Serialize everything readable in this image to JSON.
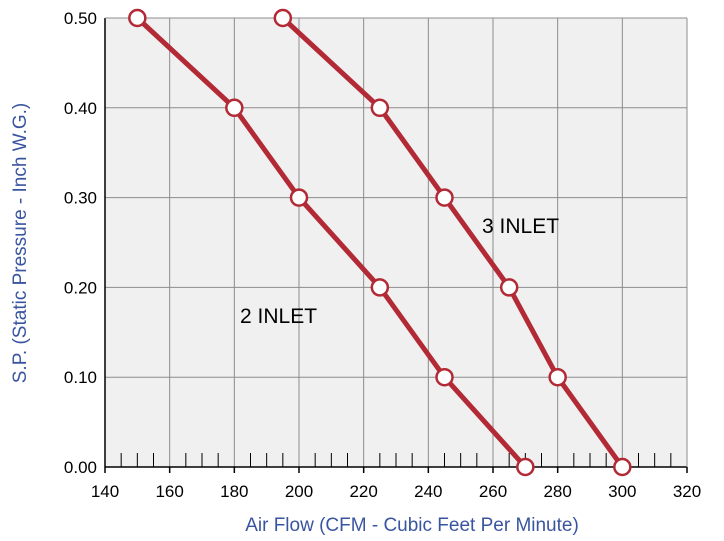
{
  "chart_data": {
    "type": "line",
    "xlabel": "Air Flow (CFM - Cubic Feet Per Minute)",
    "ylabel": "S.P. (Static Pressure - Inch W.G.)",
    "xlim": [
      140,
      320
    ],
    "ylim": [
      0.0,
      0.5
    ],
    "x_ticks": [
      "140",
      "160",
      "180",
      "200",
      "220",
      "240",
      "260",
      "280",
      "300",
      "320"
    ],
    "y_ticks": [
      "0.00",
      "0.10",
      "0.20",
      "0.30",
      "0.40",
      "0.50"
    ],
    "grid": true,
    "series": [
      {
        "name": "2 INLET",
        "points": [
          [
            150,
            0.5
          ],
          [
            180,
            0.4
          ],
          [
            200,
            0.3
          ],
          [
            225,
            0.2
          ],
          [
            245,
            0.1
          ],
          [
            270,
            0.0
          ]
        ]
      },
      {
        "name": "3 INLET",
        "points": [
          [
            195,
            0.5
          ],
          [
            225,
            0.4
          ],
          [
            245,
            0.3
          ],
          [
            265,
            0.2
          ],
          [
            280,
            0.1
          ],
          [
            300,
            0.0
          ]
        ]
      }
    ],
    "colors": {
      "line": "#b22a35",
      "marker_fill": "#ffffff",
      "plot_bg": "#f0f0f0",
      "grid": "#8c8c8c",
      "axis_title": "#3a55a0"
    }
  }
}
